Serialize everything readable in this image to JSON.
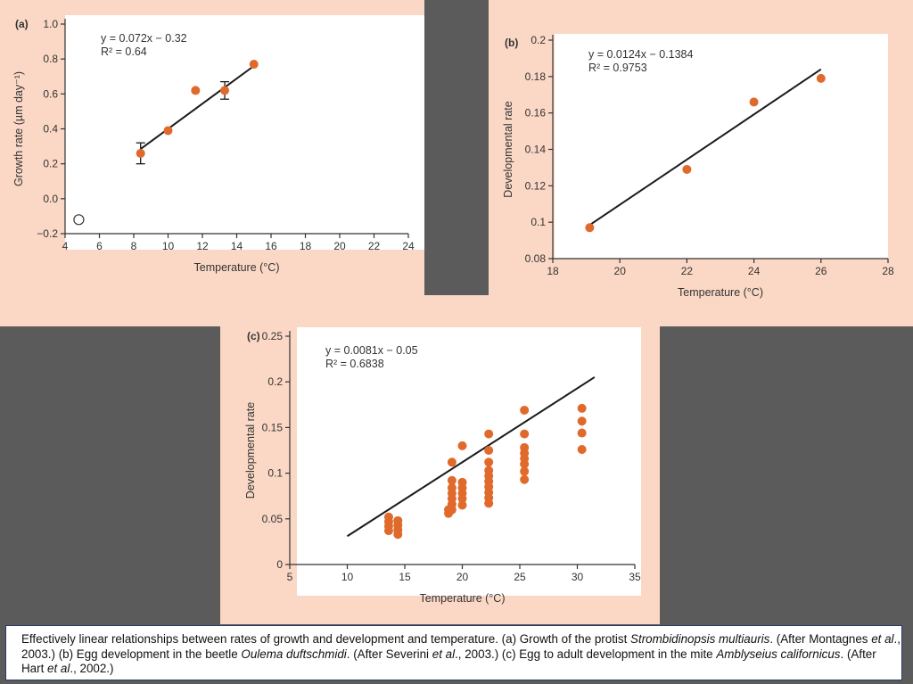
{
  "colors": {
    "outer_bg": "#5b5b5b",
    "panel_bg": "#fbd8c5",
    "plot_bg": "#ffffff",
    "point": "#e06a2c",
    "line": "#1a1a1a",
    "axis": "#333333"
  },
  "chart_data": [
    {
      "id": "a",
      "type": "scatter",
      "panel_label": "(a)",
      "xlabel": "Temperature (°C)",
      "ylabel": "Growth rate (µm day⁻¹)",
      "xlim": [
        4,
        24
      ],
      "ylim": [
        -0.2,
        1.0
      ],
      "xticks": [
        4,
        6,
        8,
        10,
        12,
        14,
        16,
        18,
        20,
        22,
        24
      ],
      "yticks": [
        -0.2,
        0.0,
        0.2,
        0.4,
        0.6,
        0.8,
        1.0
      ],
      "ytick_labels": [
        "−0.2",
        "0.0",
        "0.2",
        "0.4",
        "0.6",
        "0.8",
        "1.0"
      ],
      "points": [
        {
          "x": 8.4,
          "y": 0.26,
          "err": 0.06
        },
        {
          "x": 10.0,
          "y": 0.39
        },
        {
          "x": 11.6,
          "y": 0.62
        },
        {
          "x": 13.3,
          "y": 0.62,
          "err": 0.05
        },
        {
          "x": 15.0,
          "y": 0.77
        }
      ],
      "open_points": [
        {
          "x": 4.8,
          "y": -0.12
        }
      ],
      "fit": {
        "x0": 8.4,
        "x1": 15.0,
        "slope": 0.072,
        "intercept": -0.32
      },
      "equation": "y = 0.072x − 0.32",
      "r2": "R² = 0.64"
    },
    {
      "id": "b",
      "type": "scatter",
      "panel_label": "(b)",
      "xlabel": "Temperature (°C)",
      "ylabel": "Developmental rate",
      "xlim": [
        18,
        28
      ],
      "ylim": [
        0.08,
        0.2
      ],
      "xticks": [
        18,
        20,
        22,
        24,
        26,
        28
      ],
      "yticks": [
        0.08,
        0.1,
        0.12,
        0.14,
        0.16,
        0.18,
        0.2
      ],
      "ytick_labels": [
        "0.08",
        "0.1",
        "0.12",
        "0.14",
        "0.16",
        "0.18",
        "0.2"
      ],
      "points": [
        {
          "x": 19.1,
          "y": 0.097
        },
        {
          "x": 22.0,
          "y": 0.129
        },
        {
          "x": 24.0,
          "y": 0.166
        },
        {
          "x": 26.0,
          "y": 0.179
        }
      ],
      "open_points": [],
      "fit": {
        "x0": 19.1,
        "x1": 26.0,
        "slope": 0.0124,
        "intercept": -0.1384
      },
      "equation": "y = 0.0124x − 0.1384",
      "r2": "R² = 0.9753"
    },
    {
      "id": "c",
      "type": "scatter",
      "panel_label": "(c)",
      "xlabel": "Temperature (°C)",
      "ylabel": "Developmental rate",
      "xlim": [
        5,
        35
      ],
      "ylim": [
        0,
        0.25
      ],
      "xticks": [
        5,
        10,
        15,
        20,
        25,
        30,
        35
      ],
      "yticks": [
        0,
        0.05,
        0.1,
        0.15,
        0.2,
        0.25
      ],
      "ytick_labels": [
        "0",
        "0.05",
        "0.1",
        "0.15",
        "0.2",
        "0.25"
      ],
      "points": [
        {
          "x": 13.6,
          "y": 0.052
        },
        {
          "x": 13.6,
          "y": 0.047
        },
        {
          "x": 13.6,
          "y": 0.042
        },
        {
          "x": 13.6,
          "y": 0.037
        },
        {
          "x": 14.4,
          "y": 0.048
        },
        {
          "x": 14.4,
          "y": 0.043
        },
        {
          "x": 14.4,
          "y": 0.038
        },
        {
          "x": 14.4,
          "y": 0.033
        },
        {
          "x": 18.8,
          "y": 0.056
        },
        {
          "x": 18.8,
          "y": 0.06
        },
        {
          "x": 19.1,
          "y": 0.112
        },
        {
          "x": 19.1,
          "y": 0.092
        },
        {
          "x": 19.1,
          "y": 0.084
        },
        {
          "x": 19.1,
          "y": 0.078
        },
        {
          "x": 19.1,
          "y": 0.072
        },
        {
          "x": 19.1,
          "y": 0.066
        },
        {
          "x": 19.1,
          "y": 0.06
        },
        {
          "x": 20.0,
          "y": 0.13
        },
        {
          "x": 20.0,
          "y": 0.09
        },
        {
          "x": 20.0,
          "y": 0.084
        },
        {
          "x": 20.0,
          "y": 0.078
        },
        {
          "x": 20.0,
          "y": 0.072
        },
        {
          "x": 20.0,
          "y": 0.065
        },
        {
          "x": 22.3,
          "y": 0.143
        },
        {
          "x": 22.3,
          "y": 0.125
        },
        {
          "x": 22.3,
          "y": 0.112
        },
        {
          "x": 22.3,
          "y": 0.103
        },
        {
          "x": 22.3,
          "y": 0.097
        },
        {
          "x": 22.3,
          "y": 0.091
        },
        {
          "x": 22.3,
          "y": 0.085
        },
        {
          "x": 22.3,
          "y": 0.079
        },
        {
          "x": 22.3,
          "y": 0.073
        },
        {
          "x": 22.3,
          "y": 0.067
        },
        {
          "x": 25.4,
          "y": 0.169
        },
        {
          "x": 25.4,
          "y": 0.143
        },
        {
          "x": 25.4,
          "y": 0.128
        },
        {
          "x": 25.4,
          "y": 0.122
        },
        {
          "x": 25.4,
          "y": 0.116
        },
        {
          "x": 25.4,
          "y": 0.11
        },
        {
          "x": 25.4,
          "y": 0.102
        },
        {
          "x": 25.4,
          "y": 0.093
        },
        {
          "x": 30.4,
          "y": 0.171
        },
        {
          "x": 30.4,
          "y": 0.157
        },
        {
          "x": 30.4,
          "y": 0.144
        },
        {
          "x": 30.4,
          "y": 0.126
        }
      ],
      "open_points": [],
      "fit": {
        "x0": 10.0,
        "x1": 31.5,
        "slope": 0.0081,
        "intercept": -0.05
      },
      "equation": "y = 0.0081x − 0.05",
      "r2": "R² = 0.6838"
    }
  ],
  "caption": {
    "segments": [
      {
        "text": "Effectively linear relationships between rates of growth and development and temperature. (a) Growth of the protist ",
        "italic": false
      },
      {
        "text": "Strombidinopsis multiauris",
        "italic": true
      },
      {
        "text": ". (After Montagnes ",
        "italic": false
      },
      {
        "text": "et al",
        "italic": true
      },
      {
        "text": "., 2003.) (b) Egg development in the beetle ",
        "italic": false
      },
      {
        "text": "Oulema duftschmidi",
        "italic": true
      },
      {
        "text": ". (After Severini ",
        "italic": false
      },
      {
        "text": "et al",
        "italic": true
      },
      {
        "text": "., 2003.) (c) Egg to adult development in the mite ",
        "italic": false
      },
      {
        "text": "Amblyseius californicus",
        "italic": true
      },
      {
        "text": ". (After Hart ",
        "italic": false
      },
      {
        "text": "et al",
        "italic": true
      },
      {
        "text": "., 2002.)",
        "italic": false
      }
    ]
  }
}
